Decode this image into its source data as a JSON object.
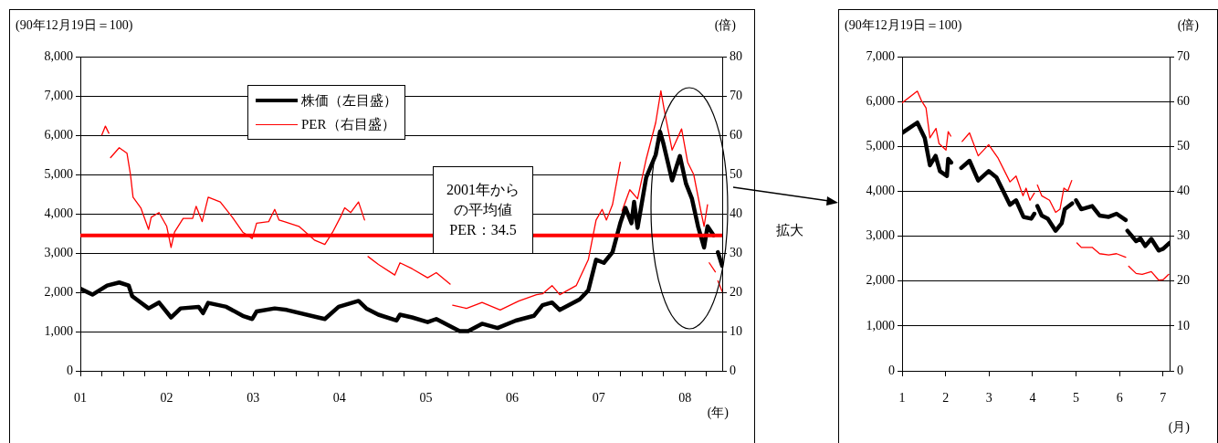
{
  "chart_data": [
    {
      "type": "line",
      "ylabel": "(90年12月19日＝100)",
      "y2label": "(倍)",
      "xlabel": "(年)",
      "xlim": [
        2001,
        2008.43
      ],
      "xticks": [
        {
          "value": 2001,
          "label": "01"
        },
        {
          "value": 2001.25,
          "label": null
        },
        {
          "value": 2001.5,
          "label": null
        },
        {
          "value": 2001.75,
          "label": null
        },
        {
          "value": 2002,
          "label": "02"
        },
        {
          "value": 2002.25,
          "label": null
        },
        {
          "value": 2002.5,
          "label": null
        },
        {
          "value": 2002.75,
          "label": null
        },
        {
          "value": 2003,
          "label": "03"
        },
        {
          "value": 2003.25,
          "label": null
        },
        {
          "value": 2003.5,
          "label": null
        },
        {
          "value": 2003.75,
          "label": null
        },
        {
          "value": 2004,
          "label": "04"
        },
        {
          "value": 2004.25,
          "label": null
        },
        {
          "value": 2004.5,
          "label": null
        },
        {
          "value": 2004.75,
          "label": null
        },
        {
          "value": 2005,
          "label": "05"
        },
        {
          "value": 2005.25,
          "label": null
        },
        {
          "value": 2005.5,
          "label": null
        },
        {
          "value": 2005.75,
          "label": null
        },
        {
          "value": 2006,
          "label": "06"
        },
        {
          "value": 2006.25,
          "label": null
        },
        {
          "value": 2006.5,
          "label": null
        },
        {
          "value": 2006.75,
          "label": null
        },
        {
          "value": 2007,
          "label": "07"
        },
        {
          "value": 2007.25,
          "label": null
        },
        {
          "value": 2007.5,
          "label": null
        },
        {
          "value": 2007.75,
          "label": null
        },
        {
          "value": 2008,
          "label": "08"
        },
        {
          "value": 2008.25,
          "label": null
        }
      ],
      "ylim": [
        0,
        8000
      ],
      "yticks": [
        0,
        {
          "value": 1000,
          "label": "1,000"
        },
        {
          "value": 2000,
          "label": "2,000"
        },
        {
          "value": 3000,
          "label": "3,000"
        },
        {
          "value": 4000,
          "label": "4,000"
        },
        {
          "value": 5000,
          "label": "5,000"
        },
        {
          "value": 6000,
          "label": "6,000"
        },
        {
          "value": 7000,
          "label": "7,000"
        },
        {
          "value": 8000,
          "label": "8,000"
        }
      ],
      "y2lim": [
        0,
        80
      ],
      "y2ticks": [
        0,
        10,
        20,
        30,
        40,
        50,
        60,
        70,
        80
      ],
      "grid": "y",
      "legend": "top left",
      "ref_lines": [
        {
          "axis": "y2",
          "value": 34.5,
          "label": "2001年からの平均値 PER：34.5",
          "color": "#ff0000"
        }
      ],
      "annotations": [
        "拡大"
      ],
      "series": [
        {
          "name": "株価（左目盛）",
          "color": "#000000",
          "axis": "y",
          "x": [
            2001.0,
            2001.14,
            2001.31,
            2001.45,
            2001.56,
            2001.6,
            2001.79,
            2001.91,
            2002.05,
            2002.16,
            2002.37,
            2002.42,
            2002.48,
            2002.69,
            2002.88,
            2002.99,
            2003.04,
            2003.25,
            2003.39,
            2003.75,
            2003.83,
            2003.99,
            2004.22,
            2004.31,
            2004.45,
            2004.66,
            2004.7,
            2004.84,
            2005.02,
            2005.12,
            2005.39,
            2005.49,
            2005.65,
            2005.83,
            2006.04,
            2006.25,
            2006.35,
            2006.46,
            2006.55,
            2006.78,
            2006.88,
            2006.97,
            2007.06,
            2007.16,
            2007.25,
            2007.31,
            2007.38,
            2007.41,
            2007.45,
            2007.55,
            2007.66,
            2007.71,
            2007.75,
            2007.85,
            2007.94,
            2008.01,
            2008.08,
            2008.15,
            2008.22,
            2008.26,
            2008.33,
            2008.35,
            2008.38,
            2008.43
          ],
          "values": [
            2090,
            1940,
            2170,
            2250,
            2170,
            1900,
            1590,
            1740,
            1360,
            1590,
            1630,
            1470,
            1730,
            1630,
            1400,
            1320,
            1510,
            1590,
            1550,
            1360,
            1320,
            1630,
            1780,
            1590,
            1430,
            1280,
            1430,
            1360,
            1240,
            1320,
            1010,
            1010,
            1200,
            1090,
            1280,
            1400,
            1670,
            1740,
            1550,
            1820,
            2050,
            2830,
            2750,
            3020,
            3760,
            4150,
            3760,
            4300,
            3640,
            4920,
            5500,
            6090,
            5780,
            4850,
            5470,
            4770,
            4380,
            3680,
            3140,
            3680,
            3450,
            null,
            3020,
            2670
          ]
        },
        {
          "name": "PER（右目盛）",
          "color": "#ff0000",
          "axis": "y2",
          "x": [
            2001.25,
            2001.29,
            2001.33,
            2001.34,
            2001.35,
            2001.45,
            2001.54,
            2001.58,
            2001.61,
            2001.7,
            2001.79,
            2001.82,
            2001.91,
            2002.0,
            2002.05,
            2002.09,
            2002.19,
            2002.3,
            2002.34,
            2002.41,
            2002.48,
            2002.62,
            2002.76,
            2002.88,
            2002.99,
            2003.04,
            2003.18,
            2003.25,
            2003.3,
            2003.36,
            2003.53,
            2003.71,
            2003.83,
            2003.92,
            2004.01,
            2004.06,
            2004.13,
            2004.22,
            2004.29,
            2004.31,
            2004.33,
            2004.45,
            2004.64,
            2004.7,
            2004.84,
            2005.02,
            2005.12,
            2005.28,
            2005.3,
            2005.31,
            2005.47,
            2005.65,
            2005.86,
            2006.04,
            2006.08,
            2006.28,
            2006.35,
            2006.46,
            2006.55,
            2006.74,
            2006.88,
            2006.97,
            2007.04,
            2007.09,
            2007.16,
            2007.25,
            2007.26,
            2007.27,
            2007.36,
            2007.45,
            2007.55,
            2007.66,
            2007.72,
            2007.76,
            2007.85,
            2007.96,
            2008.03,
            2008.1,
            2008.19,
            2008.22,
            2008.26,
            2008.27,
            2008.28,
            2008.35,
            2008.36,
            2008.38,
            2008.43
          ],
          "values": [
            60.1,
            62.3,
            60.5,
            null,
            54.3,
            56.8,
            55.4,
            50,
            44.2,
            41.5,
            36,
            39.1,
            40.3,
            36.8,
            31.4,
            35.3,
            38.8,
            38.8,
            41.9,
            38,
            44.2,
            43,
            39.1,
            35.3,
            33.7,
            37.6,
            38,
            41.1,
            38.4,
            38,
            36.8,
            33.3,
            32.2,
            35.3,
            39.1,
            41.5,
            40.3,
            43,
            38.4,
            null,
            29.1,
            27.1,
            24.4,
            27.5,
            26,
            23.7,
            25,
            22.1,
            null,
            16.7,
            15.9,
            17.4,
            15.5,
            17.4,
            17.8,
            19.4,
            19.6,
            21.7,
            19.4,
            21.7,
            28.3,
            38.4,
            41.1,
            38.4,
            42.3,
            53.1,
            null,
            40.7,
            46.1,
            43.8,
            53.9,
            63.2,
            71.3,
            66.3,
            56.2,
            61.6,
            53.1,
            50,
            39.9,
            36.8,
            42.3,
            null,
            27.5,
            25.2,
            null,
            22.9,
            20.2
          ]
        }
      ]
    },
    {
      "type": "line",
      "ylabel": "(90年12月19日＝100)",
      "y2label": "(倍)",
      "xlabel": "(月)",
      "xlim": [
        1,
        7.15
      ],
      "xticks": [
        1,
        2,
        3,
        4,
        5,
        6,
        7
      ],
      "ylim": [
        0,
        7000
      ],
      "yticks": [
        0,
        {
          "value": 1000,
          "label": "1,000"
        },
        {
          "value": 2000,
          "label": "2,000"
        },
        {
          "value": 3000,
          "label": "3,000"
        },
        {
          "value": 4000,
          "label": "4,000"
        },
        {
          "value": 5000,
          "label": "5,000"
        },
        {
          "value": 6000,
          "label": "6,000"
        },
        {
          "value": 7000,
          "label": "7,000"
        }
      ],
      "y2lim": [
        0,
        70
      ],
      "y2ticks": [
        0,
        10,
        20,
        30,
        40,
        50,
        60,
        70
      ],
      "grid": "y",
      "series": [
        {
          "color": "#000000",
          "axis": "y",
          "x": [
            1.0,
            1.35,
            1.52,
            1.64,
            1.77,
            1.87,
            2.03,
            2.06,
            2.13,
            2.2,
            2.36,
            2.55,
            2.75,
            2.99,
            3.17,
            3.48,
            3.62,
            3.79,
            3.97,
            4.04,
            4.08,
            4.11,
            4.21,
            4.35,
            4.53,
            4.67,
            4.74,
            4.91,
            4.95,
            5.0,
            5.12,
            5.37,
            5.54,
            5.75,
            5.93,
            6.14,
            6.16,
            6.18,
            6.38,
            6.48,
            6.59,
            6.73,
            6.9,
            7.0,
            7.15
          ],
          "values": [
            5300,
            5530,
            5190,
            4580,
            4790,
            4450,
            4340,
            4720,
            4640,
            null,
            4520,
            4680,
            4240,
            4450,
            4310,
            3700,
            3800,
            3430,
            3390,
            3500,
            null,
            3670,
            3460,
            3390,
            3120,
            3290,
            3600,
            3730,
            null,
            3800,
            3600,
            3670,
            3460,
            3430,
            3500,
            3360,
            null,
            3120,
            2890,
            2950,
            2780,
            2940,
            2680,
            2720,
            2850
          ]
        },
        {
          "color": "#ff0000",
          "axis": "y2",
          "x": [
            1.0,
            1.35,
            1.45,
            1.55,
            1.64,
            1.78,
            1.85,
            2.01,
            2.06,
            2.12,
            2.2,
            2.38,
            2.55,
            2.75,
            2.99,
            3.2,
            3.48,
            3.62,
            3.78,
            3.85,
            3.94,
            4.04,
            4.08,
            4.11,
            4.21,
            4.39,
            4.53,
            4.63,
            4.72,
            4.81,
            4.9,
            4.95,
            5.02,
            5.12,
            5.37,
            5.54,
            5.75,
            5.93,
            6.14,
            6.17,
            6.21,
            6.38,
            6.52,
            6.73,
            6.9,
            7.0,
            7.13
          ],
          "values": [
            59.7,
            62.3,
            60.1,
            58.6,
            51.9,
            54,
            50.6,
            49.2,
            53.3,
            52.3,
            null,
            51.1,
            53,
            47.9,
            50.4,
            47.5,
            42.1,
            43.4,
            39,
            40.7,
            38,
            39.6,
            null,
            41.4,
            39,
            38,
            35.3,
            36,
            40.7,
            40.1,
            42.4,
            null,
            28.5,
            27.5,
            27.5,
            26.1,
            25.8,
            26.1,
            25.3,
            null,
            23.3,
            21.7,
            21.5,
            22.1,
            20.2,
            20.3,
            21.5
          ]
        }
      ]
    }
  ]
}
